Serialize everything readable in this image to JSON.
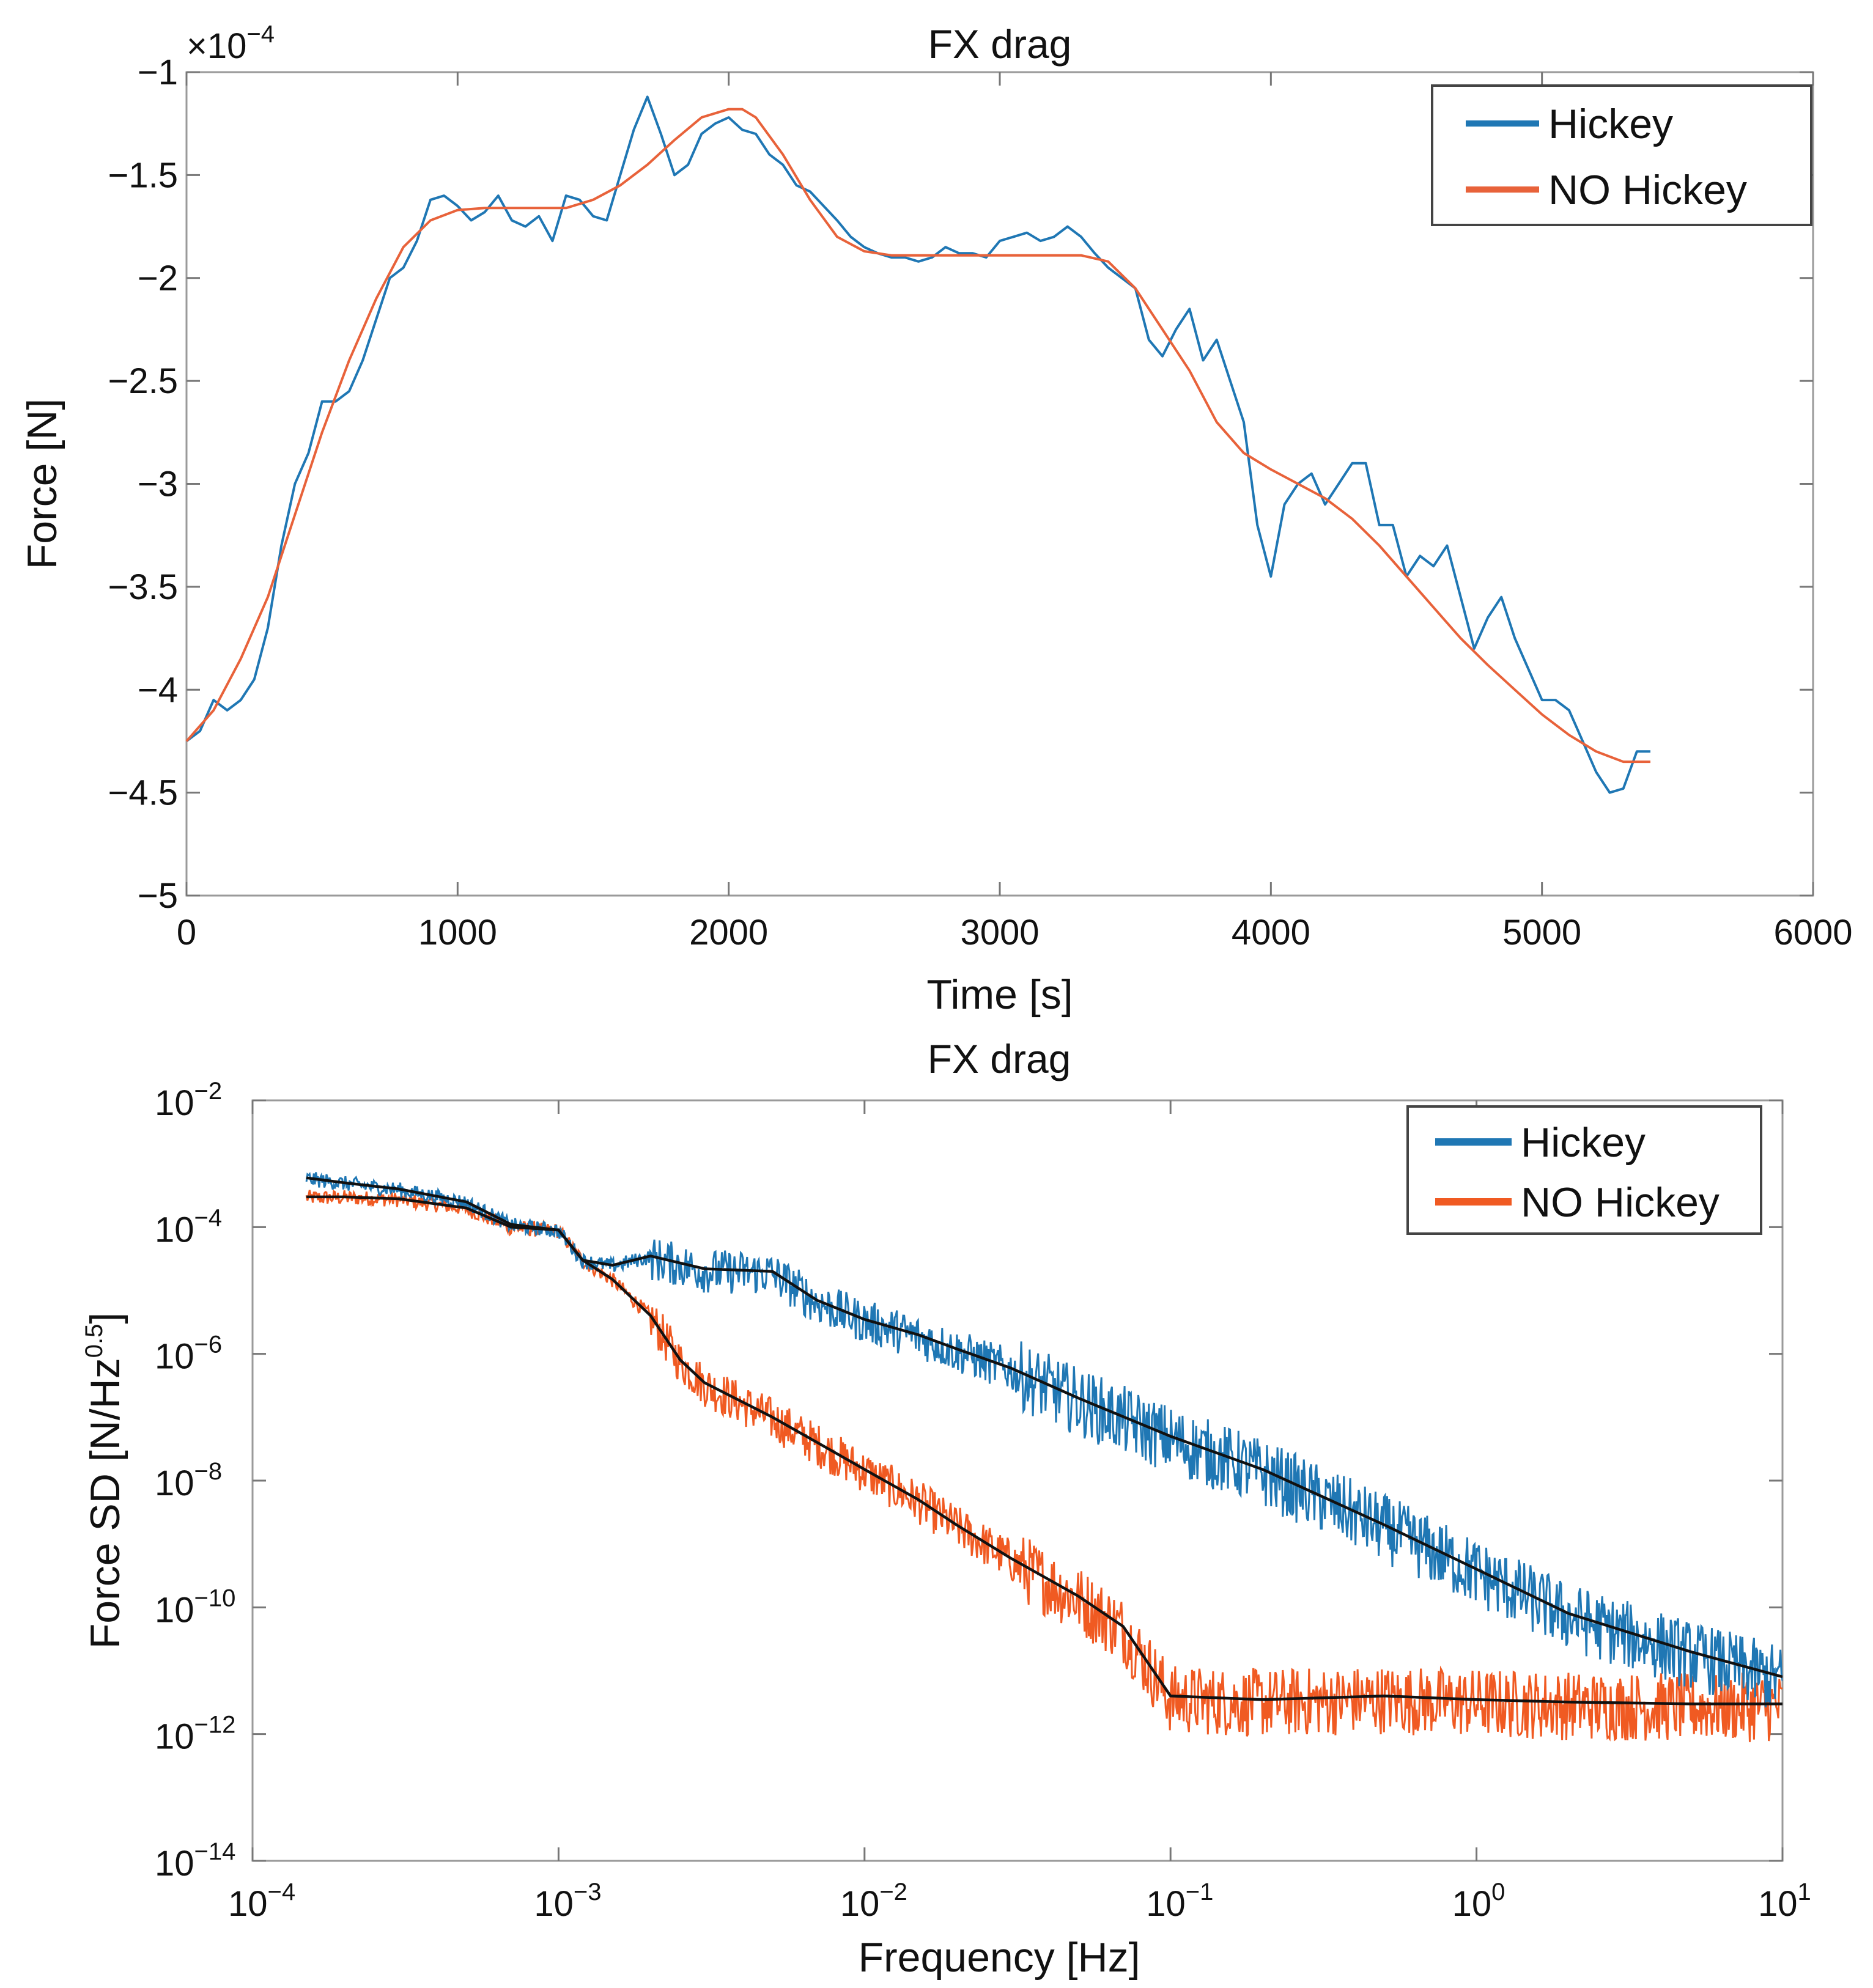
{
  "chart_data": [
    {
      "type": "line",
      "title": "FX drag",
      "xlabel": "Time [s]",
      "ylabel": "Force [N]",
      "y_multiplier": "×10",
      "y_multiplier_exp": "−4",
      "xlim": [
        0,
        6000
      ],
      "ylim": [
        -5,
        -1
      ],
      "x_ticks": [
        0,
        1000,
        2000,
        3000,
        4000,
        5000,
        6000
      ],
      "x_tick_labels": [
        "0",
        "1000",
        "2000",
        "3000",
        "4000",
        "5000",
        "6000"
      ],
      "y_ticks": [
        -1,
        -1.5,
        -2,
        -2.5,
        -3,
        -3.5,
        -4,
        -4.5,
        -5
      ],
      "y_tick_labels": [
        "−1",
        "−1.5",
        "−2",
        "−2.5",
        "−3",
        "−3.5",
        "−4",
        "−4.5",
        "−5"
      ],
      "grid": false,
      "legend_position": "top-right",
      "series": [
        {
          "name": "Hickey",
          "color": "#1f77b4",
          "x": [
            0,
            50,
            100,
            150,
            200,
            250,
            300,
            350,
            400,
            450,
            500,
            550,
            600,
            650,
            700,
            750,
            800,
            850,
            900,
            950,
            1000,
            1050,
            1100,
            1150,
            1200,
            1250,
            1300,
            1350,
            1400,
            1450,
            1500,
            1550,
            1600,
            1650,
            1700,
            1750,
            1800,
            1850,
            1900,
            1950,
            2000,
            2050,
            2100,
            2150,
            2200,
            2250,
            2300,
            2350,
            2400,
            2450,
            2500,
            2550,
            2600,
            2650,
            2700,
            2750,
            2800,
            2850,
            2900,
            2950,
            3000,
            3050,
            3100,
            3150,
            3200,
            3250,
            3300,
            3350,
            3400,
            3450,
            3500,
            3550,
            3600,
            3650,
            3700,
            3750,
            3800,
            3850,
            3900,
            3950,
            4000,
            4050,
            4100,
            4150,
            4200,
            4250,
            4300,
            4350,
            4400,
            4450,
            4500,
            4550,
            4600,
            4650,
            4700,
            4750,
            4800,
            4850,
            4900,
            4950,
            5000,
            5050,
            5100,
            5150,
            5200,
            5250,
            5300,
            5350,
            5400
          ],
          "y": [
            -4.25,
            -4.2,
            -4.05,
            -4.1,
            -4.05,
            -3.95,
            -3.7,
            -3.3,
            -3.0,
            -2.85,
            -2.6,
            -2.6,
            -2.55,
            -2.4,
            -2.2,
            -2.0,
            -1.95,
            -1.82,
            -1.62,
            -1.6,
            -1.65,
            -1.72,
            -1.68,
            -1.6,
            -1.72,
            -1.75,
            -1.7,
            -1.82,
            -1.6,
            -1.62,
            -1.7,
            -1.72,
            -1.5,
            -1.28,
            -1.12,
            -1.3,
            -1.5,
            -1.45,
            -1.3,
            -1.25,
            -1.22,
            -1.28,
            -1.3,
            -1.4,
            -1.45,
            -1.55,
            -1.58,
            -1.65,
            -1.72,
            -1.8,
            -1.85,
            -1.88,
            -1.9,
            -1.9,
            -1.92,
            -1.9,
            -1.85,
            -1.88,
            -1.88,
            -1.9,
            -1.82,
            -1.8,
            -1.78,
            -1.82,
            -1.8,
            -1.75,
            -1.8,
            -1.88,
            -1.95,
            -2.0,
            -2.05,
            -2.3,
            -2.38,
            -2.25,
            -2.15,
            -2.4,
            -2.3,
            -2.5,
            -2.7,
            -3.2,
            -3.45,
            -3.1,
            -3.0,
            -2.95,
            -3.1,
            -3.0,
            -2.9,
            -2.9,
            -3.2,
            -3.2,
            -3.45,
            -3.35,
            -3.4,
            -3.3,
            -3.55,
            -3.8,
            -3.65,
            -3.55,
            -3.75,
            -3.9,
            -4.05,
            -4.05,
            -4.1,
            -4.25,
            -4.4,
            -4.5,
            -4.48,
            -4.3,
            -4.3
          ]
        },
        {
          "name": "NO Hickey",
          "color": "#e8623a",
          "x": [
            0,
            100,
            200,
            300,
            400,
            500,
            600,
            700,
            800,
            900,
            1000,
            1100,
            1200,
            1300,
            1400,
            1500,
            1600,
            1700,
            1800,
            1900,
            2000,
            2050,
            2100,
            2200,
            2300,
            2400,
            2500,
            2600,
            2700,
            2800,
            2900,
            3000,
            3100,
            3200,
            3300,
            3400,
            3500,
            3600,
            3700,
            3800,
            3900,
            4000,
            4100,
            4200,
            4300,
            4400,
            4500,
            4600,
            4700,
            4800,
            4900,
            5000,
            5100,
            5200,
            5300,
            5400
          ],
          "y": [
            -4.25,
            -4.1,
            -3.85,
            -3.55,
            -3.15,
            -2.75,
            -2.4,
            -2.1,
            -1.85,
            -1.72,
            -1.67,
            -1.66,
            -1.66,
            -1.66,
            -1.66,
            -1.62,
            -1.55,
            -1.45,
            -1.33,
            -1.22,
            -1.18,
            -1.18,
            -1.22,
            -1.4,
            -1.62,
            -1.8,
            -1.87,
            -1.89,
            -1.89,
            -1.89,
            -1.89,
            -1.89,
            -1.89,
            -1.89,
            -1.89,
            -1.92,
            -2.05,
            -2.25,
            -2.45,
            -2.7,
            -2.85,
            -2.93,
            -3.0,
            -3.07,
            -3.17,
            -3.3,
            -3.45,
            -3.6,
            -3.75,
            -3.88,
            -4.0,
            -4.12,
            -4.22,
            -4.3,
            -4.35,
            -4.35
          ]
        }
      ]
    },
    {
      "type": "line",
      "title": "FX drag",
      "xlabel": "Frequency  [Hz]",
      "ylabel": "Force SD  [N/Hz",
      "ylabel_sup": "0.5",
      "ylabel_end": "]",
      "x_scale": "log",
      "y_scale": "log",
      "xlim": [
        0.0001,
        10
      ],
      "ylim": [
        1e-14,
        0.01
      ],
      "x_ticks": [
        0.0001,
        0.001,
        0.01,
        0.1,
        1,
        10
      ],
      "x_tick_base": [
        "10",
        "10",
        "10",
        "10",
        "10",
        "10"
      ],
      "x_tick_exp": [
        "−4",
        "−3",
        "−2",
        "−1",
        "0",
        "1"
      ],
      "y_ticks": [
        0.01,
        0.0001,
        1e-06,
        1e-08,
        1e-10,
        1e-12,
        1e-14
      ],
      "y_tick_base": [
        "10",
        "10",
        "10",
        "10",
        "10",
        "10",
        "10"
      ],
      "y_tick_exp": [
        "−2",
        "−4",
        "−6",
        "−8",
        "−10",
        "−12",
        "−14"
      ],
      "grid": false,
      "legend_position": "top-right",
      "series": [
        {
          "name": "Hickey",
          "color": "#1f77b4",
          "x": [
            0.00015,
            0.0002,
            0.0003,
            0.0005,
            0.0007,
            0.001,
            0.0012,
            0.0015,
            0.002,
            0.003,
            0.005,
            0.007,
            0.01,
            0.015,
            0.02,
            0.03,
            0.05,
            0.1,
            0.2,
            0.5,
            1,
            2,
            5,
            10
          ],
          "y": [
            0.0006,
            0.0005,
            0.0004,
            0.00025,
            0.00011,
            9e-05,
            3e-05,
            2.5e-05,
            3.5e-05,
            2.2e-05,
            2e-05,
            7e-06,
            3.5e-06,
            2e-06,
            1.2e-06,
            6e-07,
            2e-07,
            5e-08,
            1.5e-08,
            2e-09,
            4e-10,
            8e-11,
            2e-11,
            8e-12
          ]
        },
        {
          "name": "NO Hickey",
          "color": "#f05a22",
          "x": [
            0.00015,
            0.0002,
            0.0003,
            0.0005,
            0.0007,
            0.001,
            0.0012,
            0.0015,
            0.002,
            0.0025,
            0.003,
            0.005,
            0.007,
            0.01,
            0.015,
            0.02,
            0.03,
            0.05,
            0.07,
            0.1,
            0.2,
            0.5,
            1,
            2,
            5,
            10
          ],
          "y": [
            0.0003,
            0.0003,
            0.00028,
            0.0002,
            0.0001,
            9e-05,
            3e-05,
            1.5e-05,
            4e-06,
            8e-07,
            3.5e-07,
            1e-07,
            4e-08,
            1.5e-08,
            5e-09,
            2e-09,
            6e-10,
            1.5e-10,
            5e-11,
            4e-12,
            3.5e-12,
            4e-12,
            3.5e-12,
            3.2e-12,
            3e-12,
            3e-12
          ]
        }
      ]
    }
  ]
}
